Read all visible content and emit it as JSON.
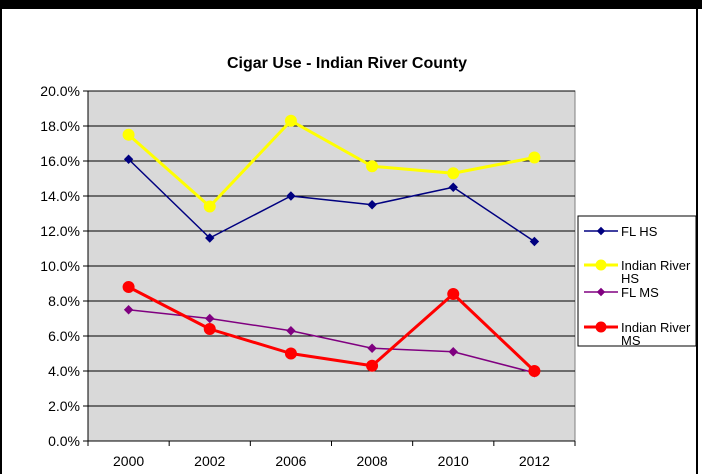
{
  "chart_data": {
    "type": "line",
    "title": "Cigar Use - Indian River County",
    "categories": [
      "2000",
      "2002",
      "2006",
      "2008",
      "2010",
      "2012"
    ],
    "y_ticks": [
      "0.0%",
      "2.0%",
      "4.0%",
      "6.0%",
      "8.0%",
      "10.0%",
      "12.0%",
      "14.0%",
      "16.0%",
      "18.0%",
      "20.0%"
    ],
    "ylim": [
      0,
      20
    ],
    "grid": true,
    "legend_position": "right",
    "series": [
      {
        "name": "FL HS",
        "legend_lines": [
          "FL HS"
        ],
        "values": [
          16.1,
          11.6,
          14.0,
          13.5,
          14.5,
          11.4
        ],
        "color": "#000080",
        "marker": "diamond",
        "width": 1.5,
        "msize": 4
      },
      {
        "name": "Indian River HS",
        "legend_lines": [
          "Indian River",
          "HS"
        ],
        "values": [
          17.5,
          13.4,
          18.3,
          15.7,
          15.3,
          16.2
        ],
        "color": "#ffff00",
        "marker": "circle",
        "width": 3,
        "msize": 5.5
      },
      {
        "name": "FL MS",
        "legend_lines": [
          "FL MS"
        ],
        "values": [
          7.5,
          7.0,
          6.3,
          5.3,
          5.1,
          3.9
        ],
        "color": "#800080",
        "marker": "diamond",
        "width": 1.5,
        "msize": 4
      },
      {
        "name": "Indian River MS",
        "legend_lines": [
          "Indian River",
          "MS"
        ],
        "values": [
          8.8,
          6.4,
          5.0,
          4.3,
          8.4,
          4.0
        ],
        "color": "#ff0000",
        "marker": "circle",
        "width": 3,
        "msize": 5.5
      }
    ]
  },
  "colors": {
    "plot_background": "#d9d9d9",
    "gridline": "#000000",
    "axis": "#000000"
  }
}
